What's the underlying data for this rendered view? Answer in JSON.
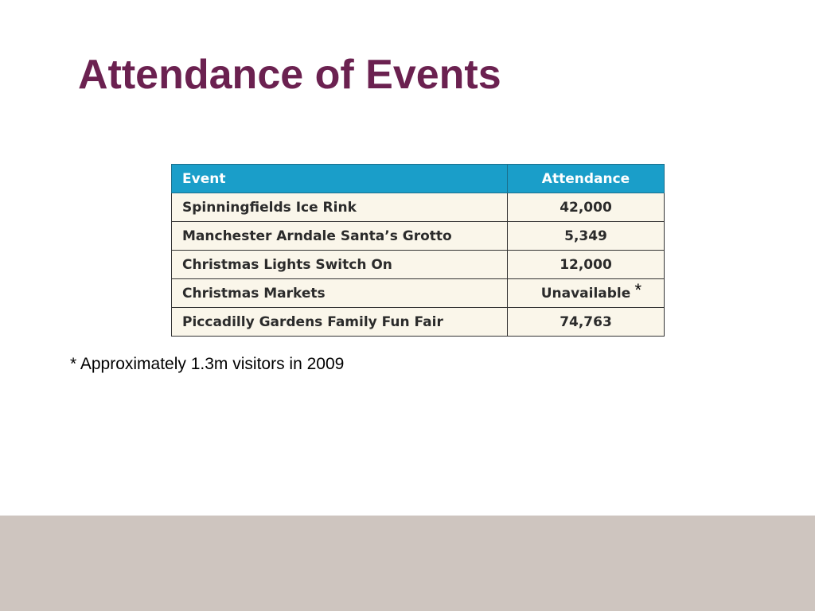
{
  "slide": {
    "title": "Attendance of Events"
  },
  "table": {
    "headers": {
      "event": "Event",
      "attendance": "Attendance"
    },
    "rows": [
      {
        "event": "Spinningfields Ice Rink",
        "attendance": "42,000",
        "marker": ""
      },
      {
        "event": "Manchester Arndale Santa’s Grotto",
        "attendance": "5,349",
        "marker": ""
      },
      {
        "event": "Christmas Lights Switch On",
        "attendance": "12,000",
        "marker": ""
      },
      {
        "event": "Christmas Markets",
        "attendance": "Unavailable",
        "marker": "*"
      },
      {
        "event": "Piccadilly Gardens Family Fun Fair",
        "attendance": "74,763",
        "marker": ""
      }
    ],
    "colors": {
      "header_bg": "#1a9ec9",
      "row_bg": "#faf6ea"
    }
  },
  "footnote": {
    "text": "* Approximately 1.3m visitors in 2009"
  },
  "theme": {
    "title_color": "#6b2150",
    "footer_band_color": "#cec5bf"
  }
}
